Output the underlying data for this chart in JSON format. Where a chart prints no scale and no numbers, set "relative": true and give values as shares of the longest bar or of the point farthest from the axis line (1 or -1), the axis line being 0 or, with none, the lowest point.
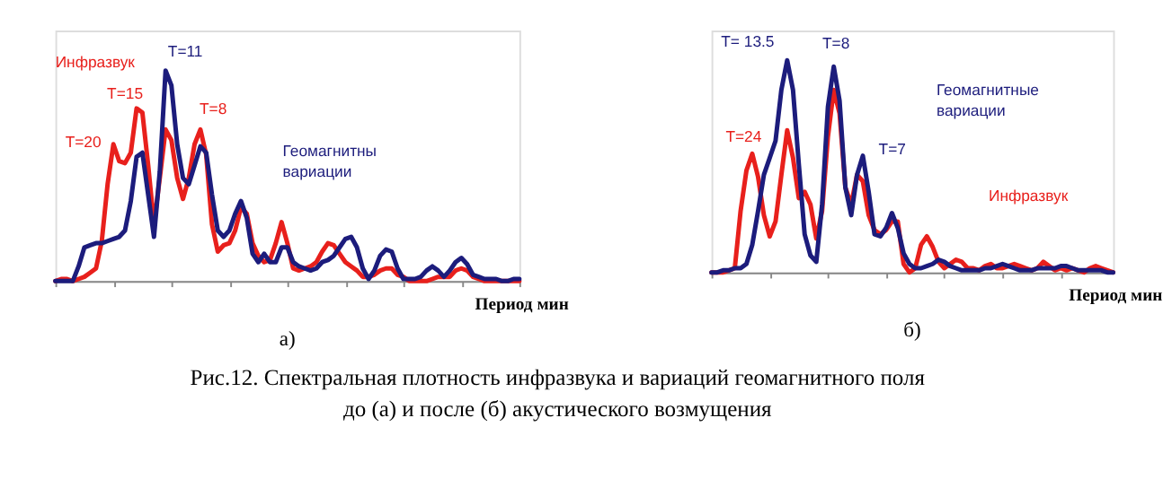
{
  "chart_data": [
    {
      "type": "line",
      "title": "а)",
      "xlabel": "Период мин",
      "relative": true,
      "categories": [
        null,
        null,
        null,
        null,
        null,
        null,
        null,
        null,
        null,
        null,
        null,
        null,
        null,
        null,
        null,
        null,
        null,
        null,
        null,
        null,
        null,
        null,
        null,
        null,
        null,
        null,
        null,
        null,
        null,
        null,
        null,
        null,
        null,
        null,
        null,
        null,
        null,
        null,
        null,
        null,
        null,
        null,
        null,
        null,
        null,
        null,
        null,
        null,
        null,
        null,
        null,
        null,
        null,
        null,
        null,
        null,
        null,
        null,
        null,
        null,
        null,
        null,
        null,
        null,
        null,
        null,
        null,
        null,
        null,
        null,
        null,
        null,
        null,
        null,
        null,
        null,
        null,
        null,
        null,
        null,
        null
      ],
      "series": [
        {
          "name": "Инфразвук",
          "color": "#e8201c",
          "values": [
            0,
            0.01,
            0.01,
            0,
            0.01,
            0.02,
            0.04,
            0.06,
            0.19,
            0.46,
            0.65,
            0.57,
            0.56,
            0.61,
            0.82,
            0.8,
            0.55,
            0.27,
            0.49,
            0.72,
            0.67,
            0.49,
            0.39,
            0.49,
            0.65,
            0.72,
            0.6,
            0.27,
            0.14,
            0.17,
            0.18,
            0.24,
            0.35,
            0.32,
            0.18,
            0.12,
            0.09,
            0.1,
            0.18,
            0.28,
            0.18,
            0.06,
            0.05,
            0.06,
            0.07,
            0.09,
            0.14,
            0.18,
            0.17,
            0.13,
            0.09,
            0.07,
            0.05,
            0.02,
            0.02,
            0.03,
            0.05,
            0.06,
            0.06,
            0.03,
            0.02,
            0,
            0,
            0,
            0,
            0.01,
            0.02,
            0.02,
            0.02,
            0.05,
            0.06,
            0.05,
            0.02,
            0.01,
            0,
            0,
            0,
            0,
            0,
            0,
            0
          ]
        },
        {
          "name": "Геомагнитны вариации",
          "color": "#1c1c7c",
          "values": [
            0,
            0,
            0,
            0,
            0.07,
            0.16,
            0.17,
            0.18,
            0.18,
            0.19,
            0.2,
            0.21,
            0.24,
            0.38,
            0.59,
            0.61,
            0.41,
            0.21,
            0.52,
            1.0,
            0.93,
            0.65,
            0.49,
            0.46,
            0.55,
            0.64,
            0.61,
            0.41,
            0.24,
            0.21,
            0.24,
            0.32,
            0.38,
            0.3,
            0.13,
            0.09,
            0.13,
            0.09,
            0.09,
            0.16,
            0.16,
            0.09,
            0.07,
            0.06,
            0.05,
            0.06,
            0.09,
            0.1,
            0.12,
            0.16,
            0.2,
            0.21,
            0.16,
            0.06,
            0.01,
            0.05,
            0.12,
            0.15,
            0.14,
            0.06,
            0.01,
            0.01,
            0.01,
            0.02,
            0.05,
            0.07,
            0.05,
            0.02,
            0.05,
            0.09,
            0.11,
            0.08,
            0.03,
            0.02,
            0.01,
            0.01,
            0.01,
            0,
            0,
            0.01,
            0.01
          ]
        }
      ],
      "annotations": [
        "T=20",
        "T=15",
        "T=11",
        "T=8"
      ]
    },
    {
      "type": "line",
      "title": "б)",
      "xlabel": "Период мин",
      "relative": true,
      "categories": [
        null,
        null,
        null,
        null,
        null,
        null,
        null,
        null,
        null,
        null,
        null,
        null,
        null,
        null,
        null,
        null,
        null,
        null,
        null,
        null,
        null,
        null,
        null,
        null,
        null,
        null,
        null,
        null,
        null,
        null,
        null,
        null,
        null,
        null,
        null,
        null,
        null,
        null,
        null,
        null,
        null,
        null,
        null,
        null,
        null,
        null,
        null,
        null,
        null,
        null,
        null,
        null,
        null,
        null,
        null,
        null,
        null,
        null,
        null,
        null,
        null,
        null,
        null,
        null,
        null,
        null,
        null,
        null,
        null,
        null
      ],
      "series": [
        {
          "name": "Инфразвук",
          "color": "#e8201c",
          "values": [
            0,
            0,
            0,
            0.01,
            0.02,
            0.29,
            0.48,
            0.56,
            0.45,
            0.27,
            0.17,
            0.24,
            0.46,
            0.67,
            0.54,
            0.35,
            0.38,
            0.32,
            0.16,
            0.29,
            0.64,
            0.86,
            0.75,
            0.4,
            0.32,
            0.46,
            0.43,
            0.27,
            0.2,
            0.18,
            0.2,
            0.24,
            0.24,
            0.04,
            0,
            0.02,
            0.13,
            0.17,
            0.12,
            0.05,
            0.02,
            0.04,
            0.06,
            0.05,
            0.02,
            0.02,
            0.01,
            0.03,
            0.04,
            0.02,
            0.02,
            0.03,
            0.04,
            0.03,
            0.02,
            0.01,
            0.02,
            0.05,
            0.03,
            0.01,
            0.02,
            0.01,
            0.02,
            0.01,
            0,
            0.02,
            0.03,
            0.02,
            0.01,
            0
          ]
        },
        {
          "name": "Геомагнитные вариации",
          "color": "#1c1c7c",
          "values": [
            0,
            0,
            0.01,
            0.01,
            0.02,
            0.02,
            0.04,
            0.13,
            0.29,
            0.46,
            0.54,
            0.62,
            0.86,
            1.0,
            0.86,
            0.51,
            0.18,
            0.08,
            0.05,
            0.32,
            0.78,
            0.97,
            0.81,
            0.4,
            0.27,
            0.46,
            0.55,
            0.38,
            0.18,
            0.17,
            0.21,
            0.28,
            0.21,
            0.09,
            0.04,
            0.02,
            0.02,
            0.03,
            0.04,
            0.06,
            0.05,
            0.03,
            0.02,
            0.01,
            0.01,
            0.01,
            0.01,
            0.02,
            0.02,
            0.03,
            0.04,
            0.03,
            0.02,
            0.01,
            0.01,
            0.01,
            0.02,
            0.02,
            0.02,
            0.02,
            0.03,
            0.03,
            0.02,
            0.01,
            0.01,
            0.01,
            0.01,
            0.01,
            0,
            0
          ]
        }
      ],
      "annotations": [
        "T= 13.5",
        "T=8",
        "T=24",
        "T=7"
      ]
    },
    {
      "type": "other",
      "annotations": [
        "Рис.12. Спектральная плотность инфразвука и вариаций геомагнитного поля",
        "до (а) и после (б) акустического возмущения"
      ]
    }
  ]
}
